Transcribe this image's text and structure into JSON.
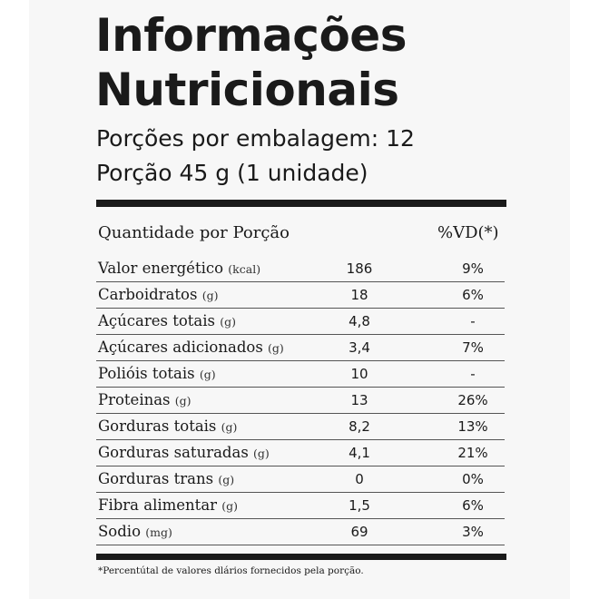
{
  "title": {
    "line1": "Informações",
    "line2": "Nutricionais"
  },
  "servings_per_package": "Porções por embalagem: 12",
  "serving_size": "Porção 45 g (1 unidade)",
  "table": {
    "header_quantity": "Quantidade por Porção",
    "header_dv": "%VD(*)",
    "rows": [
      {
        "name": "Valor energético",
        "unit": "(kcal)",
        "value": "186",
        "dv": "9%"
      },
      {
        "name": "Carboidratos",
        "unit": "(g)",
        "value": "18",
        "dv": "6%"
      },
      {
        "name": "Açúcares totais",
        "unit": "(g)",
        "value": "4,8",
        "dv": "-"
      },
      {
        "name": "Açúcares adicionados",
        "unit": "(g)",
        "value": "3,4",
        "dv": "7%"
      },
      {
        "name": "Polióis totais",
        "unit": "(g)",
        "value": "10",
        "dv": "-"
      },
      {
        "name": "Proteinas",
        "unit": "(g)",
        "value": "13",
        "dv": "26%"
      },
      {
        "name": "Gorduras totais",
        "unit": "(g)",
        "value": "8,2",
        "dv": "13%"
      },
      {
        "name": "Gorduras saturadas",
        "unit": "(g)",
        "value": "4,1",
        "dv": "21%"
      },
      {
        "name": "Gorduras trans",
        "unit": "(g)",
        "value": "0",
        "dv": "0%"
      },
      {
        "name": "Fibra alimentar",
        "unit": "(g)",
        "value": "1,5",
        "dv": "6%"
      },
      {
        "name": "Sodio",
        "unit": "(mg)",
        "value": "69",
        "dv": "3%"
      }
    ]
  },
  "footnote": "*Percentútal de valores dlários fornecidos pela porção."
}
